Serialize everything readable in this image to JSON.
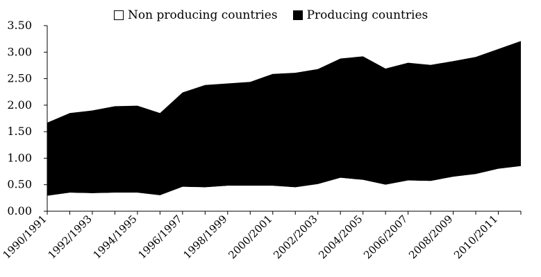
{
  "chart_data": {
    "type": "area",
    "stacked": true,
    "x": [
      "1990/1991",
      "1991/1992",
      "1992/1993",
      "1993/1994",
      "1994/1995",
      "1995/1996",
      "1996/1997",
      "1997/1998",
      "1998/1999",
      "1999/2000",
      "2000/2001",
      "2001/2002",
      "2002/2003",
      "2003/2004",
      "2004/2005",
      "2005/2006",
      "2006/2007",
      "2007/2008",
      "2008/2009",
      "2009/2010",
      "2010/2011",
      "2011/2012"
    ],
    "tick_labels": [
      "1990/1991",
      "1992/1993",
      "1994/1995",
      "1996/1997",
      "1998/1999",
      "2000/2001",
      "2002/2003",
      "2004/2005",
      "2006/2007",
      "2008/2009",
      "2010/2011"
    ],
    "series": [
      {
        "name": "Non producing countries",
        "color": "#ffffff",
        "values": [
          0.29,
          0.35,
          0.34,
          0.35,
          0.35,
          0.3,
          0.46,
          0.45,
          0.48,
          0.48,
          0.48,
          0.45,
          0.51,
          0.63,
          0.59,
          0.5,
          0.58,
          0.57,
          0.65,
          0.7,
          0.8,
          0.85
        ]
      },
      {
        "name": "Producing countries",
        "color": "#000000",
        "values": [
          1.38,
          1.5,
          1.56,
          1.63,
          1.64,
          1.55,
          1.78,
          1.93,
          1.93,
          1.96,
          2.11,
          2.16,
          2.17,
          2.25,
          2.33,
          2.19,
          2.22,
          2.19,
          2.18,
          2.21,
          2.26,
          2.36
        ]
      }
    ],
    "yticks": [
      "0.00",
      "0.50",
      "1.00",
      "1.50",
      "2.00",
      "2.50",
      "3.00",
      "3.50"
    ],
    "ylim": [
      0,
      3.5
    ],
    "xlabel": "",
    "ylabel": "",
    "grid": false,
    "legend": "top"
  }
}
